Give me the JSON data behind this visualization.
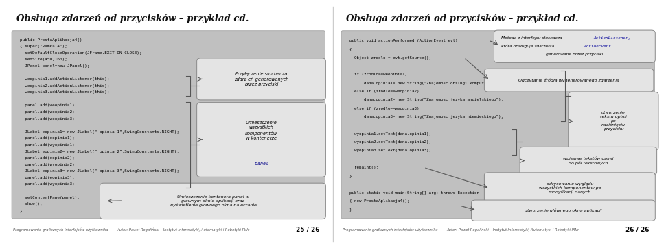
{
  "title": "Obsługa zdarz eń od przycisków – przykład cd.",
  "footer_left": "Programowanie graficznych interfejsów użytkownika",
  "footer_right": "Autor: Paweł Rogaliński – Instytut Informatyki, Automatyki i Robotyki PWr",
  "footer_page_1": "25 / 26",
  "footer_page_2": "26 / 26",
  "left_code": [
    "public ProstaAplikacja4()",
    "{ super(\"Ramka 4\");",
    "  setDefaultCloseOperation(JFrame.EXIT_ON_CLOSE);",
    "  setSize(450,160);",
    "  JPanel panel=new JPanel();",
    "",
    "  weopinia1.addActionListener(this);",
    "  weopinia2.addActionListener(this);",
    "  weopinia3.addActionListener(this);",
    "",
    "  panel.add(weopinia1);",
    "  panel.add(weopinia2);",
    "  panel.add(weopinia3);",
    "",
    "  JLabel eopinia1= new JLabel(\" opinia 1\",SwingConstants.RIGHT);",
    "  panel.add(eopinia1);",
    "  panel.add(wyopinia1);",
    "  JLabel eopinia2= new JLabel(\" opinia 2\",SwingConstants.RIGHT);",
    "  panel.add(eopinia2);",
    "  panel.add(wyopinia2);",
    "  JLabel eopinia3= new JLabel(\" opinia 3\",SwingConstants.RIGHT);",
    "  panel.add(eopinia3);",
    "  panel.add(wyopinia3);",
    "",
    "  setContentPane(panel);",
    "  show();",
    "}"
  ],
  "right_code": [
    "public void actionPerformed (ActionEvent evt)",
    "{",
    "  Object zrodlo = evt.getSource();",
    "",
    "  if (zrodlo==weopinia1)",
    "      dana.opinia1= new String(\"Znajomosc obslugi komputera\");",
    "  else if (zrodlo==weopinia2)",
    "      dana.opinia2= new String(\"Znajomosc jezyka angielskiego\");",
    "  else if (zrodlo==weopinia3)",
    "      dana.opinia3= new String(\"Znajomosc jezyka niemieckiego\");",
    "",
    "  wyopinia1.setText(dana.opinia1);",
    "  wyopinia2.setText(dana.opinia2);",
    "  wyopinia3.setText(dana.opinia3);",
    "",
    "  repaint();",
    "}",
    "",
    "public static void main(String[] arg) throws Exception",
    "{ new ProstaAplikacja4();",
    "}"
  ],
  "title_text": "Obsługa zdarz eń od przycisków – przykład cd."
}
